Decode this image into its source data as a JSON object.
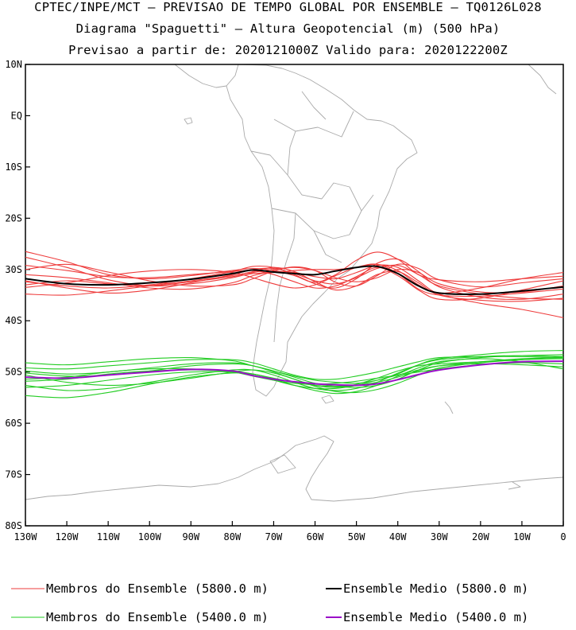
{
  "header": {
    "line1": "CPTEC/INPE/MCT – PREVISAO DE TEMPO GLOBAL POR ENSEMBLE – TQ0126L028",
    "line2": "Diagrama \"Spaguetti\" – Altura Geopotencial (m) (500 hPa)",
    "line3": "Previsao a partir de: 2020121000Z  Valido para: 2020122200Z"
  },
  "colors": {
    "member_5800": "#ee3b3b",
    "member_5400": "#22cc22",
    "mean_5800": "#000000",
    "mean_5400": "#9b10c8",
    "coastline": "#a9a9a9"
  },
  "chart_data": {
    "type": "line",
    "xlabel": "",
    "ylabel": "",
    "xlim": [
      -130,
      0
    ],
    "ylim": [
      -80,
      10
    ],
    "x_ticks": [
      -130,
      -120,
      -110,
      -100,
      -90,
      -80,
      -70,
      -60,
      -50,
      -40,
      -30,
      -20,
      -10,
      0
    ],
    "x_tick_labels": [
      "130W",
      "120W",
      "110W",
      "100W",
      "90W",
      "80W",
      "70W",
      "60W",
      "50W",
      "40W",
      "30W",
      "20W",
      "10W",
      "0"
    ],
    "y_ticks": [
      10,
      0,
      -10,
      -20,
      -30,
      -40,
      -50,
      -60,
      -70,
      -80
    ],
    "y_tick_labels": [
      "10N",
      "EQ",
      "10S",
      "20S",
      "30S",
      "40S",
      "50S",
      "60S",
      "70S",
      "80S"
    ],
    "x": [
      -130,
      -120,
      -110,
      -100,
      -90,
      -80,
      -75,
      -70,
      -65,
      -60,
      -55,
      -50,
      -45,
      -40,
      -35,
      -30,
      -20,
      -10,
      0
    ],
    "series": [
      {
        "name": "Ensemble Medio (5800.0 m)",
        "group": "mean5800",
        "values": [
          -31.8,
          -32.8,
          -33.0,
          -32.6,
          -31.9,
          -30.8,
          -30.1,
          -30.5,
          -30.8,
          -31.0,
          -30.3,
          -29.6,
          -29.4,
          -30.8,
          -33.2,
          -34.6,
          -34.8,
          -34.2,
          -33.4
        ]
      },
      {
        "name": "Ensemble Medio (5400.0 m)",
        "group": "mean5400",
        "values": [
          -51.0,
          -51.2,
          -50.6,
          -50.0,
          -49.5,
          -49.8,
          -50.7,
          -51.4,
          -51.9,
          -52.3,
          -52.5,
          -52.6,
          -52.3,
          -51.5,
          -50.5,
          -49.6,
          -48.6,
          -48.0,
          -47.9
        ]
      },
      {
        "name": "Membros do Ensemble (5800.0 m)",
        "group": "member5800",
        "values": [
          -26.5,
          -28.5,
          -31.0,
          -31.8,
          -31.2,
          -30.2,
          -29.8,
          -30.2,
          -31.2,
          -32.5,
          -31.0,
          -28.2,
          -26.6,
          -28.0,
          -31.0,
          -32.0,
          -32.4,
          -31.8,
          -31.3
        ]
      },
      {
        "name": "Membros do Ensemble (5800.0 m)",
        "group": "member5800",
        "values": [
          -30.0,
          -29.0,
          -30.5,
          -32.2,
          -33.2,
          -33.0,
          -31.8,
          -30.3,
          -29.5,
          -30.2,
          -32.5,
          -33.2,
          -31.2,
          -29.0,
          -29.8,
          -32.0,
          -33.4,
          -32.6,
          -31.8
        ]
      },
      {
        "name": "Membros do Ensemble (5800.0 m)",
        "group": "member5800",
        "values": [
          -33.5,
          -32.6,
          -31.2,
          -30.3,
          -30.0,
          -30.6,
          -31.6,
          -32.8,
          -33.6,
          -33.0,
          -31.2,
          -29.6,
          -29.0,
          -30.8,
          -33.8,
          -35.0,
          -35.2,
          -34.6,
          -33.8
        ]
      },
      {
        "name": "Membros do Ensemble (5800.0 m)",
        "group": "member5800",
        "values": [
          -34.8,
          -35.0,
          -34.2,
          -33.2,
          -32.2,
          -31.2,
          -30.4,
          -29.6,
          -30.4,
          -32.4,
          -34.0,
          -33.2,
          -31.0,
          -30.4,
          -32.6,
          -35.0,
          -36.0,
          -36.2,
          -35.6
        ]
      },
      {
        "name": "Membros do Ensemble (5800.0 m)",
        "group": "member5800",
        "values": [
          -31.0,
          -31.6,
          -32.6,
          -33.6,
          -33.8,
          -32.6,
          -31.2,
          -30.4,
          -30.6,
          -31.4,
          -31.8,
          -30.6,
          -29.2,
          -29.6,
          -32.2,
          -34.8,
          -36.6,
          -37.8,
          -39.4
        ]
      },
      {
        "name": "Membros do Ensemble (5800.0 m)",
        "group": "member5800",
        "values": [
          -32.2,
          -33.6,
          -34.6,
          -34.0,
          -32.6,
          -31.0,
          -30.0,
          -29.8,
          -30.8,
          -32.2,
          -32.8,
          -31.6,
          -29.8,
          -29.2,
          -31.0,
          -33.2,
          -34.8,
          -35.6,
          -35.8
        ]
      },
      {
        "name": "Membros do Ensemble (5800.0 m)",
        "group": "member5800",
        "values": [
          -29.2,
          -30.2,
          -31.4,
          -31.6,
          -31.0,
          -30.4,
          -30.2,
          -31.0,
          -32.4,
          -33.6,
          -33.2,
          -31.4,
          -29.6,
          -31.2,
          -34.0,
          -35.8,
          -35.6,
          -34.0,
          -32.2
        ]
      },
      {
        "name": "Membros do Ensemble (5800.0 m)",
        "group": "member5800",
        "values": [
          -33.0,
          -32.2,
          -32.8,
          -33.2,
          -32.4,
          -31.4,
          -30.8,
          -30.6,
          -30.2,
          -30.0,
          -30.0,
          -29.6,
          -29.0,
          -30.2,
          -33.0,
          -34.6,
          -33.6,
          -31.8,
          -30.6
        ]
      },
      {
        "name": "Membros do Ensemble (5800.0 m)",
        "group": "member5800",
        "values": [
          -27.6,
          -29.6,
          -32.0,
          -33.2,
          -32.8,
          -31.6,
          -30.6,
          -30.0,
          -29.6,
          -30.2,
          -31.6,
          -32.4,
          -31.6,
          -30.0,
          -30.6,
          -32.8,
          -34.4,
          -34.4,
          -33.2
        ]
      },
      {
        "name": "Membros do Ensemble (5800.0 m)",
        "group": "member5800",
        "values": [
          -32.4,
          -33.2,
          -33.6,
          -33.0,
          -31.8,
          -30.4,
          -29.4,
          -29.6,
          -31.0,
          -32.8,
          -33.6,
          -31.8,
          -28.8,
          -28.0,
          -30.4,
          -33.4,
          -35.4,
          -35.8,
          -34.8
        ]
      },
      {
        "name": "Membros do Ensemble (5400.0 m)",
        "group": "member5400",
        "values": [
          -48.2,
          -48.6,
          -48.0,
          -47.4,
          -47.2,
          -47.8,
          -48.8,
          -49.8,
          -50.8,
          -51.6,
          -52.0,
          -52.2,
          -51.6,
          -50.4,
          -48.6,
          -47.4,
          -46.6,
          -46.0,
          -45.8
        ]
      },
      {
        "name": "Membros do Ensemble (5400.0 m)",
        "group": "member5400",
        "values": [
          -49.2,
          -49.4,
          -48.8,
          -48.2,
          -47.6,
          -47.6,
          -48.2,
          -49.4,
          -50.6,
          -51.4,
          -51.4,
          -50.8,
          -50.0,
          -49.0,
          -48.0,
          -47.2,
          -47.0,
          -47.0,
          -47.2
        ]
      },
      {
        "name": "Membros do Ensemble (5400.0 m)",
        "group": "member5400",
        "values": [
          -50.2,
          -50.8,
          -50.6,
          -49.8,
          -48.8,
          -48.4,
          -48.8,
          -49.8,
          -51.0,
          -52.2,
          -52.8,
          -53.0,
          -52.6,
          -51.4,
          -49.6,
          -48.2,
          -47.2,
          -46.8,
          -46.6
        ]
      },
      {
        "name": "Membros do Ensemble (5400.0 m)",
        "group": "member5400",
        "values": [
          -51.4,
          -51.0,
          -50.0,
          -49.4,
          -49.4,
          -50.0,
          -50.8,
          -51.6,
          -52.2,
          -52.4,
          -52.2,
          -51.8,
          -51.2,
          -50.6,
          -50.0,
          -49.4,
          -48.6,
          -48.2,
          -48.4
        ]
      },
      {
        "name": "Membros do Ensemble (5400.0 m)",
        "group": "member5400",
        "values": [
          -52.6,
          -53.6,
          -53.2,
          -52.0,
          -50.6,
          -49.6,
          -49.6,
          -50.6,
          -52.0,
          -53.2,
          -53.6,
          -53.2,
          -52.0,
          -50.2,
          -48.6,
          -47.6,
          -47.0,
          -46.8,
          -47.0
        ]
      },
      {
        "name": "Membros do Ensemble (5400.0 m)",
        "group": "member5400",
        "values": [
          -54.6,
          -55.0,
          -54.0,
          -52.4,
          -51.0,
          -50.2,
          -50.4,
          -51.4,
          -52.6,
          -53.6,
          -54.2,
          -53.8,
          -52.6,
          -50.8,
          -49.2,
          -48.0,
          -47.4,
          -48.0,
          -49.4
        ]
      },
      {
        "name": "Membros do Ensemble (5400.0 m)",
        "group": "member5400",
        "values": [
          -50.6,
          -52.0,
          -52.6,
          -52.2,
          -51.2,
          -50.0,
          -49.6,
          -50.2,
          -51.4,
          -52.8,
          -53.8,
          -54.0,
          -53.4,
          -52.2,
          -50.6,
          -49.2,
          -48.2,
          -47.6,
          -47.4
        ]
      },
      {
        "name": "Membros do Ensemble (5400.0 m)",
        "group": "member5400",
        "values": [
          -49.8,
          -50.4,
          -50.0,
          -49.2,
          -48.4,
          -48.2,
          -48.8,
          -50.0,
          -51.4,
          -52.6,
          -53.0,
          -52.4,
          -51.2,
          -49.8,
          -48.8,
          -48.4,
          -48.0,
          -47.6,
          -47.0
        ]
      },
      {
        "name": "Membros do Ensemble (5400.0 m)",
        "group": "member5400",
        "values": [
          -51.8,
          -51.4,
          -50.4,
          -49.8,
          -49.6,
          -49.8,
          -50.4,
          -51.2,
          -52.0,
          -52.6,
          -52.8,
          -52.6,
          -52.0,
          -51.0,
          -49.8,
          -48.8,
          -48.0,
          -47.4,
          -47.2
        ]
      },
      {
        "name": "Membros do Ensemble (5400.0 m)",
        "group": "member5400",
        "values": [
          -53.0,
          -52.6,
          -51.6,
          -50.6,
          -50.0,
          -50.0,
          -50.6,
          -51.6,
          -52.6,
          -53.2,
          -53.2,
          -52.6,
          -51.6,
          -50.6,
          -49.6,
          -48.8,
          -48.4,
          -48.6,
          -49.0
        ]
      }
    ],
    "grid": false,
    "legend": {
      "placement": "bottom",
      "items": [
        {
          "label": "Membros do Ensemble (5800.0 m)",
          "color_key": "member_5800",
          "style": "thin"
        },
        {
          "label": "Ensemble Medio (5800.0 m)",
          "color_key": "mean_5800",
          "style": "thick"
        },
        {
          "label": "Membros do Ensemble (5400.0 m)",
          "color_key": "member_5400",
          "style": "thin"
        },
        {
          "label": "Ensemble Medio (5400.0 m)",
          "color_key": "mean_5400",
          "style": "thick"
        }
      ]
    }
  }
}
